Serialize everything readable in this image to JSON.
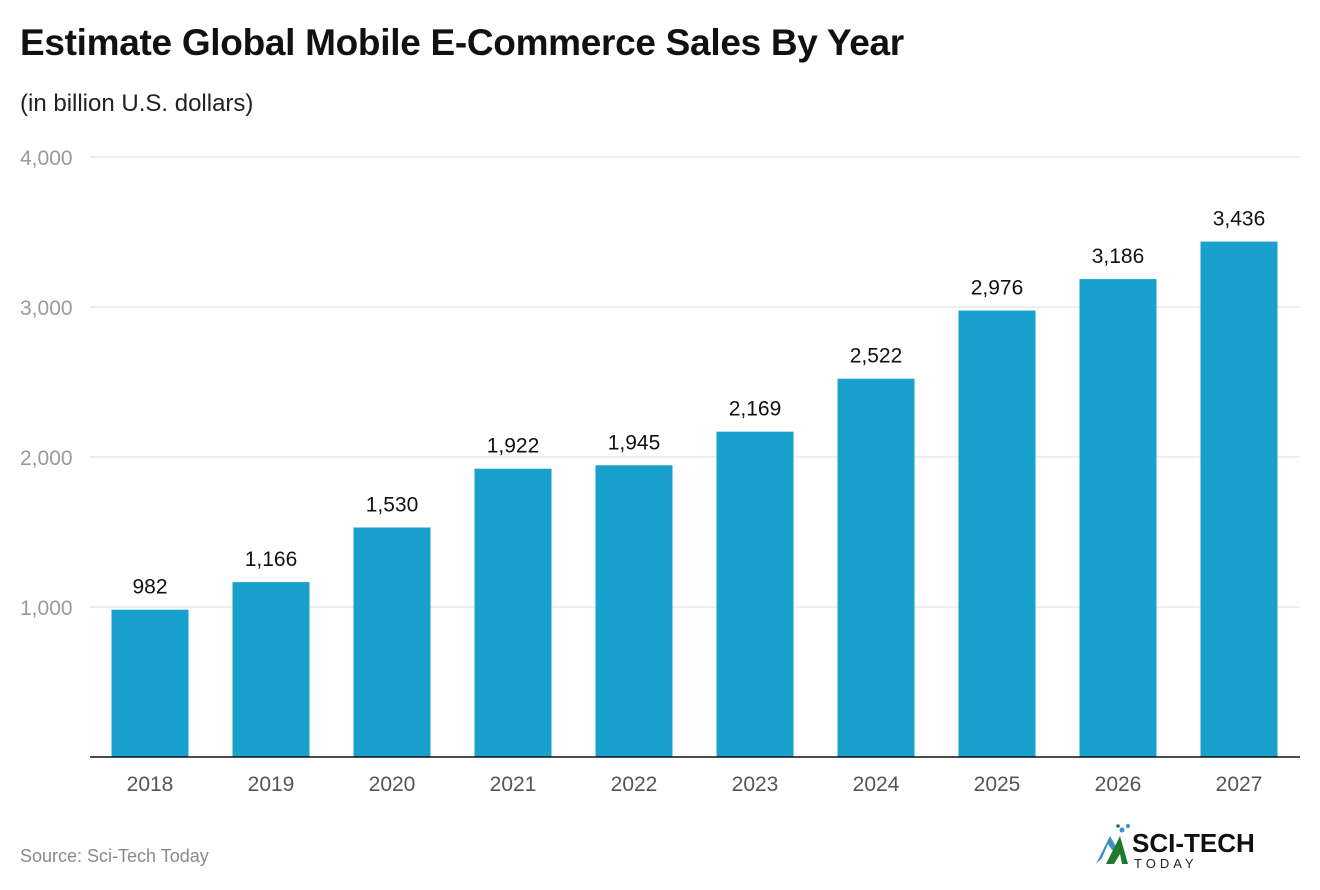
{
  "chart_data": {
    "type": "bar",
    "title": "Estimate Global Mobile E-Commerce Sales By Year",
    "subtitle": "(in billion U.S. dollars)",
    "categories": [
      "2018",
      "2019",
      "2020",
      "2021",
      "2022",
      "2023",
      "2024",
      "2025",
      "2026",
      "2027"
    ],
    "values": [
      982,
      1166,
      1530,
      1922,
      1945,
      2169,
      2522,
      2976,
      3186,
      3436
    ],
    "data_labels": [
      "982",
      "1,166",
      "1,530",
      "1,922",
      "1,945",
      "2,169",
      "2,522",
      "2,976",
      "3,186",
      "3,436"
    ],
    "yticks": [
      1000,
      2000,
      3000,
      4000
    ],
    "ytick_labels": [
      "1,000",
      "2,000",
      "3,000",
      "4,000"
    ],
    "ylim": [
      0,
      4000
    ],
    "grid": true,
    "bar_color": "#18a1cd",
    "xlabel": "",
    "ylabel": ""
  },
  "footer": {
    "source": "Source: Sci-Tech Today",
    "logo_text": "SCI-TECH",
    "logo_subtext": "TODAY"
  }
}
